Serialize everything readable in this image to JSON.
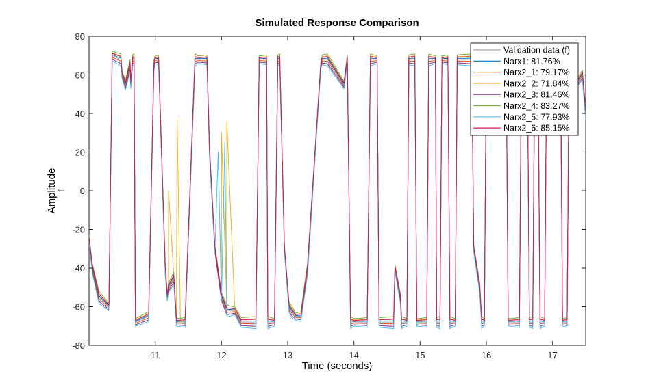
{
  "chart_data": {
    "type": "line",
    "title": "Simulated Response Comparison",
    "xlabel": "Time (seconds)",
    "ylabel": "Amplitude",
    "ylabel_sub": "f",
    "xlim": [
      10.0,
      17.5
    ],
    "ylim": [
      -80,
      80
    ],
    "xticks": [
      11,
      12,
      13,
      14,
      15,
      16,
      17
    ],
    "yticks": [
      80,
      60,
      40,
      20,
      0,
      -20,
      -40,
      -60,
      -80
    ],
    "grid": false,
    "legend_position": "top-right",
    "base_waveform": {
      "x": [
        10.0,
        10.05,
        10.15,
        10.3,
        10.35,
        10.48,
        10.5,
        10.55,
        10.62,
        10.63,
        10.66,
        10.68,
        10.7,
        10.9,
        10.98,
        11.0,
        11.05,
        11.15,
        11.18,
        11.2,
        11.28,
        11.32,
        11.45,
        11.6,
        11.65,
        11.78,
        11.82,
        11.9,
        12.0,
        12.08,
        12.2,
        12.3,
        12.52,
        12.57,
        12.68,
        12.7,
        12.8,
        12.85,
        12.88,
        12.95,
        13.02,
        13.05,
        13.12,
        13.2,
        13.3,
        13.5,
        13.52,
        13.6,
        13.85,
        13.9,
        13.95,
        14.0,
        14.2,
        14.25,
        14.35,
        14.38,
        14.6,
        14.62,
        14.7,
        14.72,
        14.8,
        14.83,
        14.92,
        14.95,
        15.1,
        15.13,
        15.23,
        15.25,
        15.3,
        15.33,
        15.42,
        15.45,
        15.53,
        15.56,
        15.78,
        15.81,
        15.9,
        15.93,
        15.97,
        16.0,
        16.3,
        16.33,
        16.5,
        16.53,
        16.62,
        16.65,
        16.7,
        16.73,
        16.78,
        16.81,
        16.88,
        16.91,
        17.12,
        17.15,
        17.22,
        17.25,
        17.35,
        17.45,
        17.5
      ],
      "y": [
        -25,
        -40,
        -55,
        -60,
        70,
        68,
        60,
        55,
        65,
        55,
        68,
        68,
        -68,
        -65,
        65,
        68,
        68,
        -40,
        -55,
        -50,
        -45,
        -68,
        -68,
        68,
        68,
        68,
        20,
        -30,
        -55,
        -62,
        -62,
        -68,
        -68,
        68,
        68,
        -68,
        -68,
        68,
        68,
        -30,
        -60,
        -62,
        -65,
        -65,
        -40,
        65,
        68,
        68,
        55,
        68,
        -68,
        -68,
        -68,
        68,
        68,
        -68,
        -68,
        -40,
        -55,
        -68,
        -68,
        68,
        68,
        -68,
        -68,
        68,
        68,
        -68,
        -68,
        68,
        68,
        -68,
        -68,
        68,
        68,
        -30,
        -50,
        -68,
        -68,
        68,
        68,
        -68,
        -68,
        68,
        68,
        -68,
        -68,
        68,
        68,
        -68,
        -68,
        68,
        68,
        -68,
        -68,
        68,
        55,
        60,
        40
      ]
    },
    "series": [
      {
        "name": "Validation data (f)",
        "color": "#a6a6a6",
        "offset": 0.0,
        "delta": []
      },
      {
        "name": "Narx1: 81.76%",
        "color": "#0072bd",
        "offset": 0.4,
        "delta": []
      },
      {
        "name": "Narx2_1:  79.17%",
        "color": "#d95319",
        "offset": -0.6,
        "delta": []
      },
      {
        "name": "Narx2_2:  71.84%",
        "color": "#edb120",
        "offset": 1.1,
        "delta": [
          {
            "x": 11.08,
            "y": 35
          },
          {
            "x": 11.2,
            "y": 0
          },
          {
            "x": 11.33,
            "y": 38
          },
          {
            "x": 11.38,
            "y": -68
          },
          {
            "x": 12.0,
            "y": 30
          },
          {
            "x": 12.08,
            "y": 36
          },
          {
            "x": 12.2,
            "y": -62
          }
        ]
      },
      {
        "name": "Narx2_3:  81.46%",
        "color": "#7e2f8e",
        "offset": -1.4,
        "delta": []
      },
      {
        "name": "Narx2_4:  83.27%",
        "color": "#77ac30",
        "offset": 1.8,
        "delta": []
      },
      {
        "name": "Narx2_5:  77.93%",
        "color": "#4dbeee",
        "offset": -2.1,
        "delta": [
          {
            "x": 11.95,
            "y": 20
          },
          {
            "x": 12.05,
            "y": 25
          }
        ]
      },
      {
        "name": "Narx2_6:  85.15%",
        "color": "#d4145a",
        "offset": 0.9,
        "delta": []
      }
    ]
  }
}
